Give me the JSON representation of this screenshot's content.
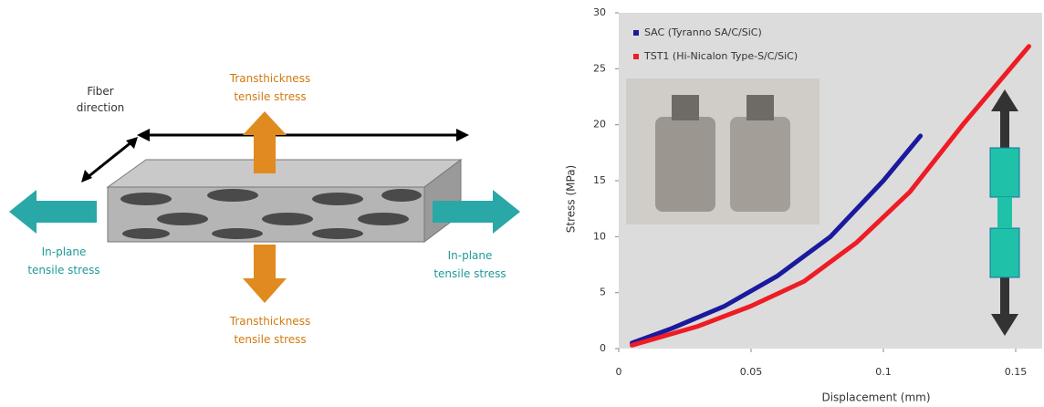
{
  "diagram": {
    "fiber_direction": [
      "Fiber",
      "direction"
    ],
    "top_stress": [
      "Transthickness",
      "tensile stress"
    ],
    "bottom_stress": [
      "Transthickness",
      "tensile stress"
    ],
    "left_stress": [
      "In-plane",
      "tensile stress"
    ],
    "right_stress": [
      "In-plane",
      "tensile stress"
    ]
  },
  "chart_data": {
    "type": "line",
    "x_label": "Displacement (mm)",
    "y_label": "Stress (MPa)",
    "xlim": [
      0,
      0.16
    ],
    "xticks": [
      0,
      0.05,
      0.1,
      0.15
    ],
    "ylim": [
      0,
      30
    ],
    "yticks": [
      0,
      5,
      10,
      15,
      20,
      25,
      30
    ],
    "legend": "upper left",
    "series": [
      {
        "name": "SAC (Tyranno SA/C/SiC)",
        "color": "#1a1a9e",
        "x": [
          0.005,
          0.02,
          0.04,
          0.06,
          0.08,
          0.1,
          0.114
        ],
        "values": [
          0.5,
          1.8,
          3.8,
          6.5,
          10,
          15,
          19
        ]
      },
      {
        "name": "TST1 (Hi-Nicalon Type-S/C/SiC)",
        "color": "#ee1c24",
        "x": [
          0.005,
          0.03,
          0.05,
          0.07,
          0.09,
          0.11,
          0.13,
          0.155
        ],
        "values": [
          0.3,
          2,
          3.8,
          6,
          9.5,
          14,
          20,
          27
        ]
      }
    ]
  }
}
